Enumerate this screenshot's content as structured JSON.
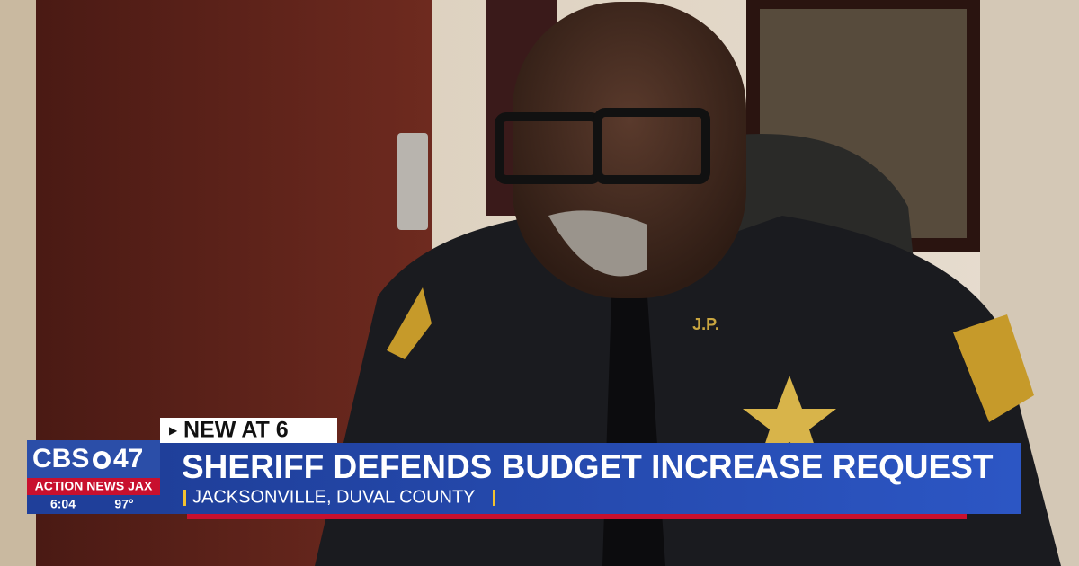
{
  "scene": {
    "collar_text": "J.P."
  },
  "lower_third": {
    "tag": "NEW AT 6",
    "headline": "SHERIFF DEFENDS BUDGET INCREASE REQUEST",
    "location": "JACKSONVILLE, DUVAL COUNTY"
  },
  "logo": {
    "network": "CBS",
    "channel": "47",
    "brand": "ACTION NEWS JAX",
    "time": "6:04",
    "temperature": "97°"
  }
}
